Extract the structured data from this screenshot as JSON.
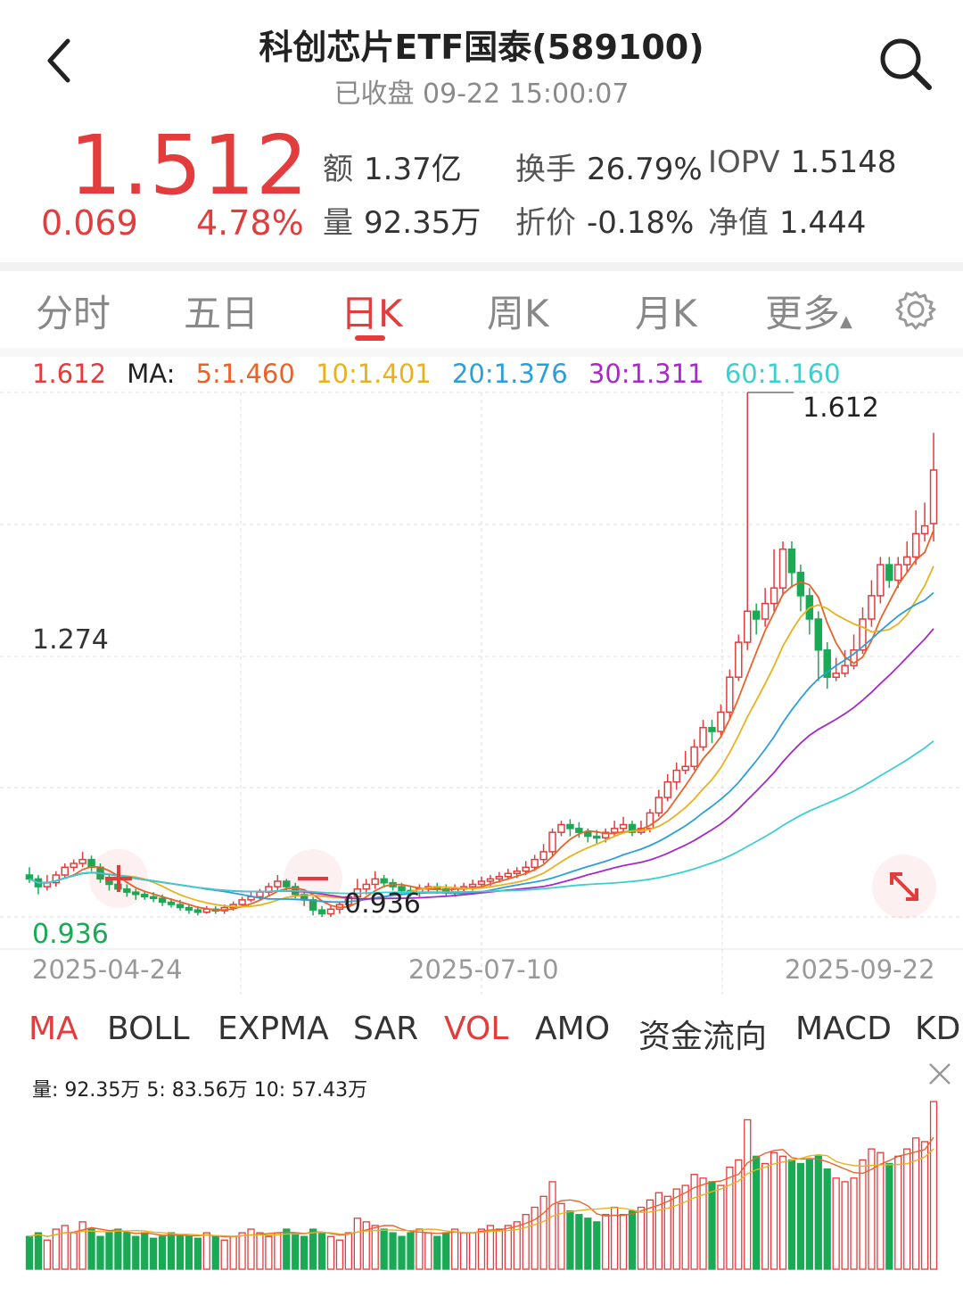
{
  "header": {
    "title": "科创芯片ETF国泰(589100)",
    "subtitle": "已收盘 09-22 15:00:07"
  },
  "quote": {
    "price": "1.512",
    "change": "0.069",
    "change_pct": "4.78%",
    "stats": [
      {
        "key": "额",
        "value": "1.37亿"
      },
      {
        "key": "换手",
        "value": "26.79%"
      },
      {
        "key": "IOPV",
        "value": "1.5148"
      },
      {
        "key": "量",
        "value": "92.35万"
      },
      {
        "key": "折价",
        "value": "-0.18%"
      },
      {
        "key": "净值",
        "value": "1.444"
      }
    ]
  },
  "period_tabs": [
    "分时",
    "五日",
    "日K",
    "周K",
    "月K",
    "更多"
  ],
  "active_period": "日K",
  "ma_legend": {
    "current": "1.612",
    "label": "MA:",
    "items": [
      "5:1.460",
      "10:1.401",
      "20:1.376",
      "30:1.311",
      "60:1.160"
    ]
  },
  "colors": {
    "up": "#e23c3c",
    "down": "#1aaa55",
    "ma5": "#e8632a",
    "ma10": "#e8b21e",
    "ma20": "#2c9fd8",
    "ma30": "#a629c8",
    "ma60": "#3ccfcf"
  },
  "axis": {
    "y_top": "1.612",
    "y_mid": "1.274",
    "y_bottom": "0.936",
    "low_annotation": "0.936",
    "high_annotation": "1.612"
  },
  "dates": [
    "2025-04-24",
    "2025-07-10",
    "2025-09-22"
  ],
  "indicator_tabs": [
    "MA",
    "BOLL",
    "EXPMA",
    "SAR",
    "VOL",
    "AMO",
    "资金流向",
    "MACD",
    "KD"
  ],
  "vol_legend": "量: 92.35万  5: 83.56万  10: 57.43万",
  "icons": {
    "back": "chevron-left-icon",
    "search": "search-icon",
    "settings": "gear-icon",
    "expand": "expand-icon",
    "close": "close-icon",
    "zoom_in": "plus-icon",
    "zoom_out": "minus-icon"
  },
  "chart_data": {
    "type": "candlestick",
    "ylim": [
      0.936,
      1.612
    ],
    "candles": [
      [
        0.99,
        0.985,
        1.0,
        0.98
      ],
      [
        0.985,
        0.975,
        0.99,
        0.965
      ],
      [
        0.975,
        0.98,
        0.99,
        0.97
      ],
      [
        0.98,
        0.99,
        0.995,
        0.975
      ],
      [
        0.99,
        1.0,
        1.005,
        0.985
      ],
      [
        1.0,
        1.005,
        1.01,
        0.995
      ],
      [
        1.005,
        1.01,
        1.02,
        1.0
      ],
      [
        1.01,
        1.0,
        1.015,
        0.995
      ],
      [
        1.0,
        0.985,
        1.005,
        0.98
      ],
      [
        0.985,
        0.978,
        0.99,
        0.97
      ],
      [
        0.978,
        0.972,
        0.985,
        0.968
      ],
      [
        0.972,
        0.968,
        0.978,
        0.962
      ],
      [
        0.968,
        0.965,
        0.972,
        0.958
      ],
      [
        0.965,
        0.962,
        0.97,
        0.958
      ],
      [
        0.962,
        0.96,
        0.968,
        0.955
      ],
      [
        0.96,
        0.955,
        0.965,
        0.95
      ],
      [
        0.955,
        0.952,
        0.96,
        0.948
      ],
      [
        0.952,
        0.948,
        0.958,
        0.944
      ],
      [
        0.948,
        0.945,
        0.952,
        0.94
      ],
      [
        0.945,
        0.942,
        0.95,
        0.938
      ],
      [
        0.942,
        0.946,
        0.95,
        0.94
      ],
      [
        0.946,
        0.944,
        0.95,
        0.94
      ],
      [
        0.944,
        0.948,
        0.952,
        0.94
      ],
      [
        0.948,
        0.952,
        0.956,
        0.944
      ],
      [
        0.952,
        0.958,
        0.962,
        0.948
      ],
      [
        0.958,
        0.962,
        0.968,
        0.955
      ],
      [
        0.962,
        0.968,
        0.972,
        0.958
      ],
      [
        0.968,
        0.975,
        0.98,
        0.964
      ],
      [
        0.975,
        0.982,
        0.99,
        0.97
      ],
      [
        0.982,
        0.975,
        0.985,
        0.97
      ],
      [
        0.975,
        0.965,
        0.98,
        0.96
      ],
      [
        0.965,
        0.958,
        0.97,
        0.95
      ],
      [
        0.958,
        0.945,
        0.962,
        0.938
      ],
      [
        0.945,
        0.94,
        0.95,
        0.936
      ],
      [
        0.94,
        0.946,
        0.95,
        0.936
      ],
      [
        0.946,
        0.952,
        0.956,
        0.94
      ],
      [
        0.952,
        0.962,
        0.966,
        0.948
      ],
      [
        0.962,
        0.972,
        0.985,
        0.958
      ],
      [
        0.972,
        0.978,
        0.985,
        0.965
      ],
      [
        0.978,
        0.985,
        0.995,
        0.972
      ],
      [
        0.985,
        0.98,
        0.99,
        0.974
      ],
      [
        0.98,
        0.975,
        0.985,
        0.97
      ],
      [
        0.975,
        0.97,
        0.98,
        0.965
      ],
      [
        0.97,
        0.968,
        0.976,
        0.962
      ],
      [
        0.968,
        0.972,
        0.978,
        0.962
      ],
      [
        0.972,
        0.975,
        0.98,
        0.968
      ],
      [
        0.975,
        0.972,
        0.98,
        0.966
      ],
      [
        0.972,
        0.968,
        0.978,
        0.962
      ],
      [
        0.968,
        0.972,
        0.978,
        0.962
      ],
      [
        0.972,
        0.975,
        0.98,
        0.966
      ],
      [
        0.975,
        0.978,
        0.984,
        0.97
      ],
      [
        0.978,
        0.982,
        0.988,
        0.974
      ],
      [
        0.982,
        0.985,
        0.99,
        0.976
      ],
      [
        0.985,
        0.988,
        0.994,
        0.98
      ],
      [
        0.988,
        0.992,
        0.998,
        0.984
      ],
      [
        0.992,
        0.995,
        1.0,
        0.986
      ],
      [
        0.995,
        1.0,
        1.008,
        0.99
      ],
      [
        1.0,
        1.01,
        1.016,
        0.995
      ],
      [
        1.01,
        1.02,
        1.03,
        1.005
      ],
      [
        1.02,
        1.045,
        1.05,
        1.015
      ],
      [
        1.045,
        1.055,
        1.06,
        1.04
      ],
      [
        1.055,
        1.05,
        1.062,
        1.04
      ],
      [
        1.05,
        1.045,
        1.058,
        1.038
      ],
      [
        1.045,
        1.04,
        1.05,
        1.032
      ],
      [
        1.04,
        1.038,
        1.048,
        1.03
      ],
      [
        1.038,
        1.045,
        1.05,
        1.032
      ],
      [
        1.045,
        1.05,
        1.06,
        1.04
      ],
      [
        1.05,
        1.055,
        1.065,
        1.045
      ],
      [
        1.055,
        1.045,
        1.06,
        1.04
      ],
      [
        1.045,
        1.05,
        1.06,
        1.042
      ],
      [
        1.05,
        1.07,
        1.075,
        1.045
      ],
      [
        1.07,
        1.09,
        1.1,
        1.065
      ],
      [
        1.09,
        1.11,
        1.12,
        1.085
      ],
      [
        1.11,
        1.125,
        1.135,
        1.1
      ],
      [
        1.125,
        1.13,
        1.15,
        1.12
      ],
      [
        1.13,
        1.155,
        1.165,
        1.125
      ],
      [
        1.155,
        1.18,
        1.19,
        1.15
      ],
      [
        1.18,
        1.175,
        1.19,
        1.16
      ],
      [
        1.175,
        1.2,
        1.21,
        1.17
      ],
      [
        1.2,
        1.245,
        1.255,
        1.19
      ],
      [
        1.245,
        1.29,
        1.3,
        1.24
      ],
      [
        1.29,
        1.33,
        1.612,
        1.28
      ],
      [
        1.33,
        1.32,
        1.34,
        1.3
      ],
      [
        1.32,
        1.34,
        1.36,
        1.31
      ],
      [
        1.34,
        1.36,
        1.41,
        1.33
      ],
      [
        1.36,
        1.41,
        1.42,
        1.35
      ],
      [
        1.41,
        1.38,
        1.42,
        1.36
      ],
      [
        1.38,
        1.35,
        1.39,
        1.33
      ],
      [
        1.35,
        1.32,
        1.36,
        1.3
      ],
      [
        1.32,
        1.28,
        1.33,
        1.24
      ],
      [
        1.28,
        1.245,
        1.29,
        1.23
      ],
      [
        1.245,
        1.25,
        1.27,
        1.24
      ],
      [
        1.25,
        1.26,
        1.28,
        1.245
      ],
      [
        1.26,
        1.28,
        1.3,
        1.255
      ],
      [
        1.28,
        1.32,
        1.335,
        1.275
      ],
      [
        1.32,
        1.35,
        1.37,
        1.31
      ],
      [
        1.35,
        1.39,
        1.4,
        1.34
      ],
      [
        1.39,
        1.37,
        1.4,
        1.36
      ],
      [
        1.37,
        1.39,
        1.4,
        1.36
      ],
      [
        1.39,
        1.4,
        1.42,
        1.38
      ],
      [
        1.4,
        1.43,
        1.46,
        1.39
      ],
      [
        1.43,
        1.44,
        1.47,
        1.42
      ],
      [
        1.443,
        1.512,
        1.56,
        1.42
      ]
    ],
    "volume": [
      0.18,
      0.2,
      0.16,
      0.22,
      0.24,
      0.2,
      0.26,
      0.22,
      0.18,
      0.2,
      0.22,
      0.2,
      0.18,
      0.2,
      0.17,
      0.18,
      0.2,
      0.19,
      0.18,
      0.17,
      0.2,
      0.18,
      0.16,
      0.18,
      0.2,
      0.22,
      0.2,
      0.18,
      0.2,
      0.22,
      0.2,
      0.18,
      0.22,
      0.2,
      0.18,
      0.16,
      0.2,
      0.28,
      0.26,
      0.24,
      0.22,
      0.2,
      0.18,
      0.2,
      0.22,
      0.2,
      0.18,
      0.2,
      0.22,
      0.2,
      0.2,
      0.22,
      0.24,
      0.22,
      0.24,
      0.26,
      0.3,
      0.34,
      0.4,
      0.48,
      0.36,
      0.32,
      0.3,
      0.28,
      0.26,
      0.3,
      0.34,
      0.3,
      0.32,
      0.34,
      0.38,
      0.42,
      0.4,
      0.44,
      0.46,
      0.52,
      0.5,
      0.48,
      0.46,
      0.56,
      0.6,
      0.82,
      0.62,
      0.58,
      0.64,
      0.62,
      0.6,
      0.58,
      0.6,
      0.62,
      0.55,
      0.5,
      0.48,
      0.5,
      0.6,
      0.66,
      0.64,
      0.58,
      0.62,
      0.66,
      0.72,
      0.7,
      0.92
    ]
  }
}
